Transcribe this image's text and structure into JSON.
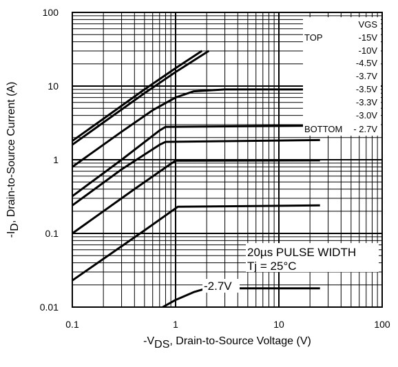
{
  "chart_data": {
    "type": "line",
    "xscale": "log",
    "yscale": "log",
    "xlim": [
      0.1,
      100
    ],
    "ylim": [
      0.01,
      100
    ],
    "grid": true,
    "xlabel": {
      "prefix": "-V",
      "subscript": "DS",
      "suffix": ", Drain-to-Source Voltage (V)"
    },
    "ylabel": {
      "prefix": "-I",
      "subscript": "D",
      "suffix": ", Drain-to-Source Current (A)"
    },
    "x_ticks": [
      0.1,
      1,
      10,
      100
    ],
    "x_tick_labels": [
      "0.1",
      "1",
      "10",
      "100"
    ],
    "y_ticks": [
      0.01,
      0.1,
      1,
      10,
      100
    ],
    "y_tick_labels": [
      "0.01",
      "0.1",
      "1",
      "10",
      "100"
    ],
    "legend": {
      "title": "VGS",
      "top_label": "TOP",
      "bottom_label": "BOTTOM",
      "entries": [
        "-15V",
        "-10V",
        "-4.5V",
        "-3.7V",
        "-3.5V",
        "-3.3V",
        "-3.0V",
        "- 2.7V"
      ],
      "position": "top-right"
    },
    "annotations": [
      "20µs PULSE WIDTH",
      "Tj = 25°C",
      "-2.7V"
    ],
    "series": [
      {
        "name": "-15V",
        "x": [
          0.1,
          0.2,
          0.5,
          1,
          1.8
        ],
        "y": [
          1.8,
          3.6,
          9,
          17.5,
          30
        ]
      },
      {
        "name": "-10V",
        "x": [
          0.1,
          0.2,
          0.5,
          1,
          2.1
        ],
        "y": [
          1.6,
          3.2,
          8,
          15.5,
          30
        ]
      },
      {
        "name": "-4.5V",
        "x": [
          0.1,
          0.3,
          0.6,
          1,
          1.5,
          3,
          25
        ],
        "y": [
          0.8,
          2.4,
          4.7,
          7,
          8.5,
          9,
          9
        ]
      },
      {
        "name": "-3.7V",
        "x": [
          0.1,
          0.3,
          0.7,
          0.8,
          25
        ],
        "y": [
          0.32,
          1.0,
          2.5,
          2.8,
          2.9
        ]
      },
      {
        "name": "-3.5V",
        "x": [
          0.1,
          0.3,
          0.7,
          0.8,
          25
        ],
        "y": [
          0.24,
          0.74,
          1.6,
          1.75,
          1.85
        ]
      },
      {
        "name": "-3.3V",
        "x": [
          0.1,
          0.4,
          0.9,
          1,
          25
        ],
        "y": [
          0.1,
          0.4,
          0.88,
          0.97,
          0.98
        ]
      },
      {
        "name": "-3.0V",
        "x": [
          0.1,
          0.5,
          1.05,
          25
        ],
        "y": [
          0.023,
          0.11,
          0.23,
          0.24
        ]
      },
      {
        "name": "-2.7V",
        "x": [
          0.75,
          1,
          1.5,
          2,
          25
        ],
        "y": [
          0.01,
          0.0125,
          0.016,
          0.018,
          0.018
        ]
      }
    ]
  }
}
